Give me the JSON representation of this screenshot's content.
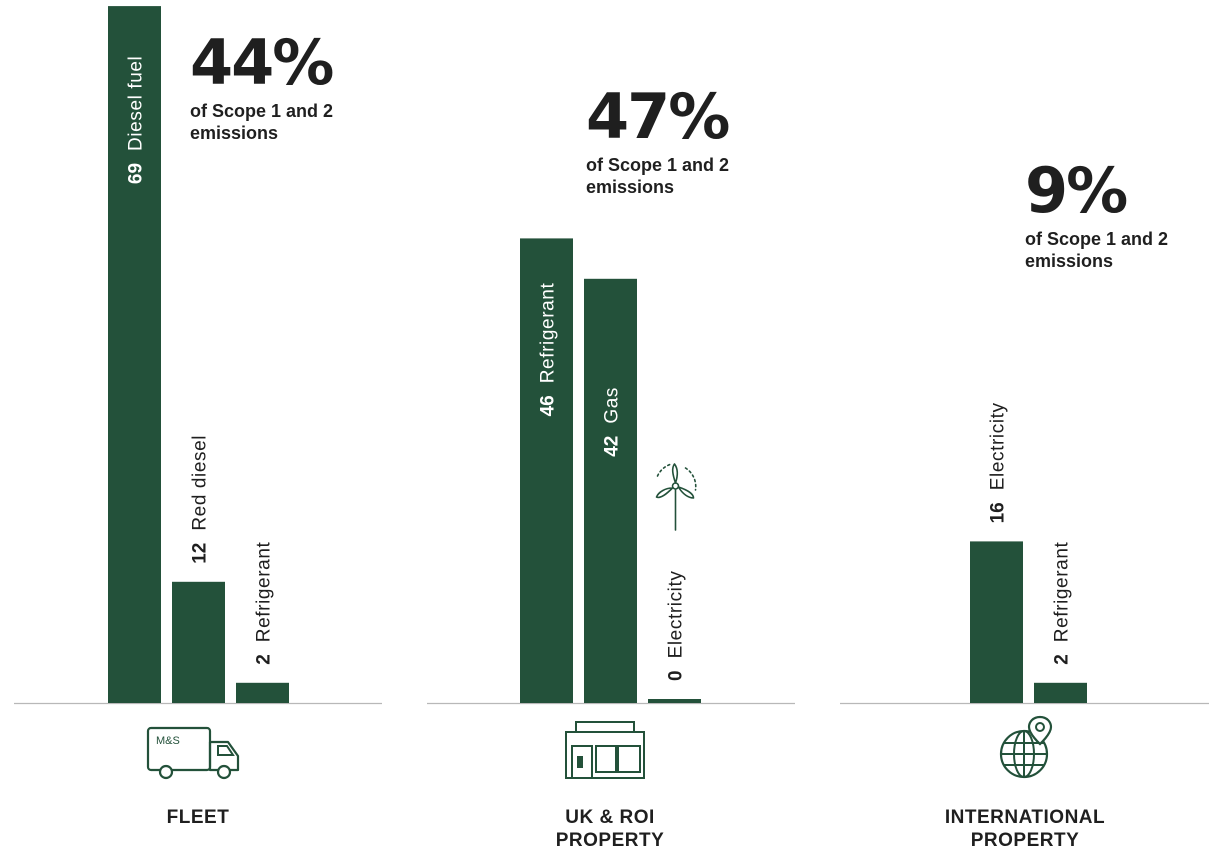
{
  "chart_data": {
    "type": "bar",
    "colors": {
      "bar": "#23513a",
      "icon": "#23513a",
      "text": "#1f1f1f",
      "baseline": "#b8b8b8"
    },
    "groups": [
      {
        "label_lines": [
          "FLEET"
        ],
        "share": "44%",
        "share_note": "of Scope 1 and 2 emissions",
        "icon": "delivery-truck-icon",
        "icon_text": "M&S",
        "bars": [
          {
            "value": 69,
            "value_label": "69",
            "name": "Diesel fuel"
          },
          {
            "value": 12,
            "value_label": "12",
            "name": "Red diesel"
          },
          {
            "value": 2,
            "value_label": "2",
            "name": "Refrigerant"
          }
        ]
      },
      {
        "label_lines": [
          "UK & ROI",
          "PROPERTY"
        ],
        "share": "47%",
        "share_note": "of Scope 1 and 2 emissions",
        "icon": "store-front-icon",
        "bars": [
          {
            "value": 46,
            "value_label": "46",
            "name": "Refrigerant"
          },
          {
            "value": 42,
            "value_label": "42",
            "name": "Gas"
          },
          {
            "value": 0,
            "value_label": "0",
            "name": "Electricity",
            "icon": "wind-turbine-icon"
          }
        ]
      },
      {
        "label_lines": [
          "INTERNATIONAL",
          "PROPERTY"
        ],
        "share": "9%",
        "share_note": "of Scope 1 and 2 emissions",
        "icon": "globe-location-icon",
        "bars": [
          {
            "value": 16,
            "value_label": "16",
            "name": "Electricity"
          },
          {
            "value": 2,
            "value_label": "2",
            "name": "Refrigerant"
          }
        ]
      }
    ]
  }
}
